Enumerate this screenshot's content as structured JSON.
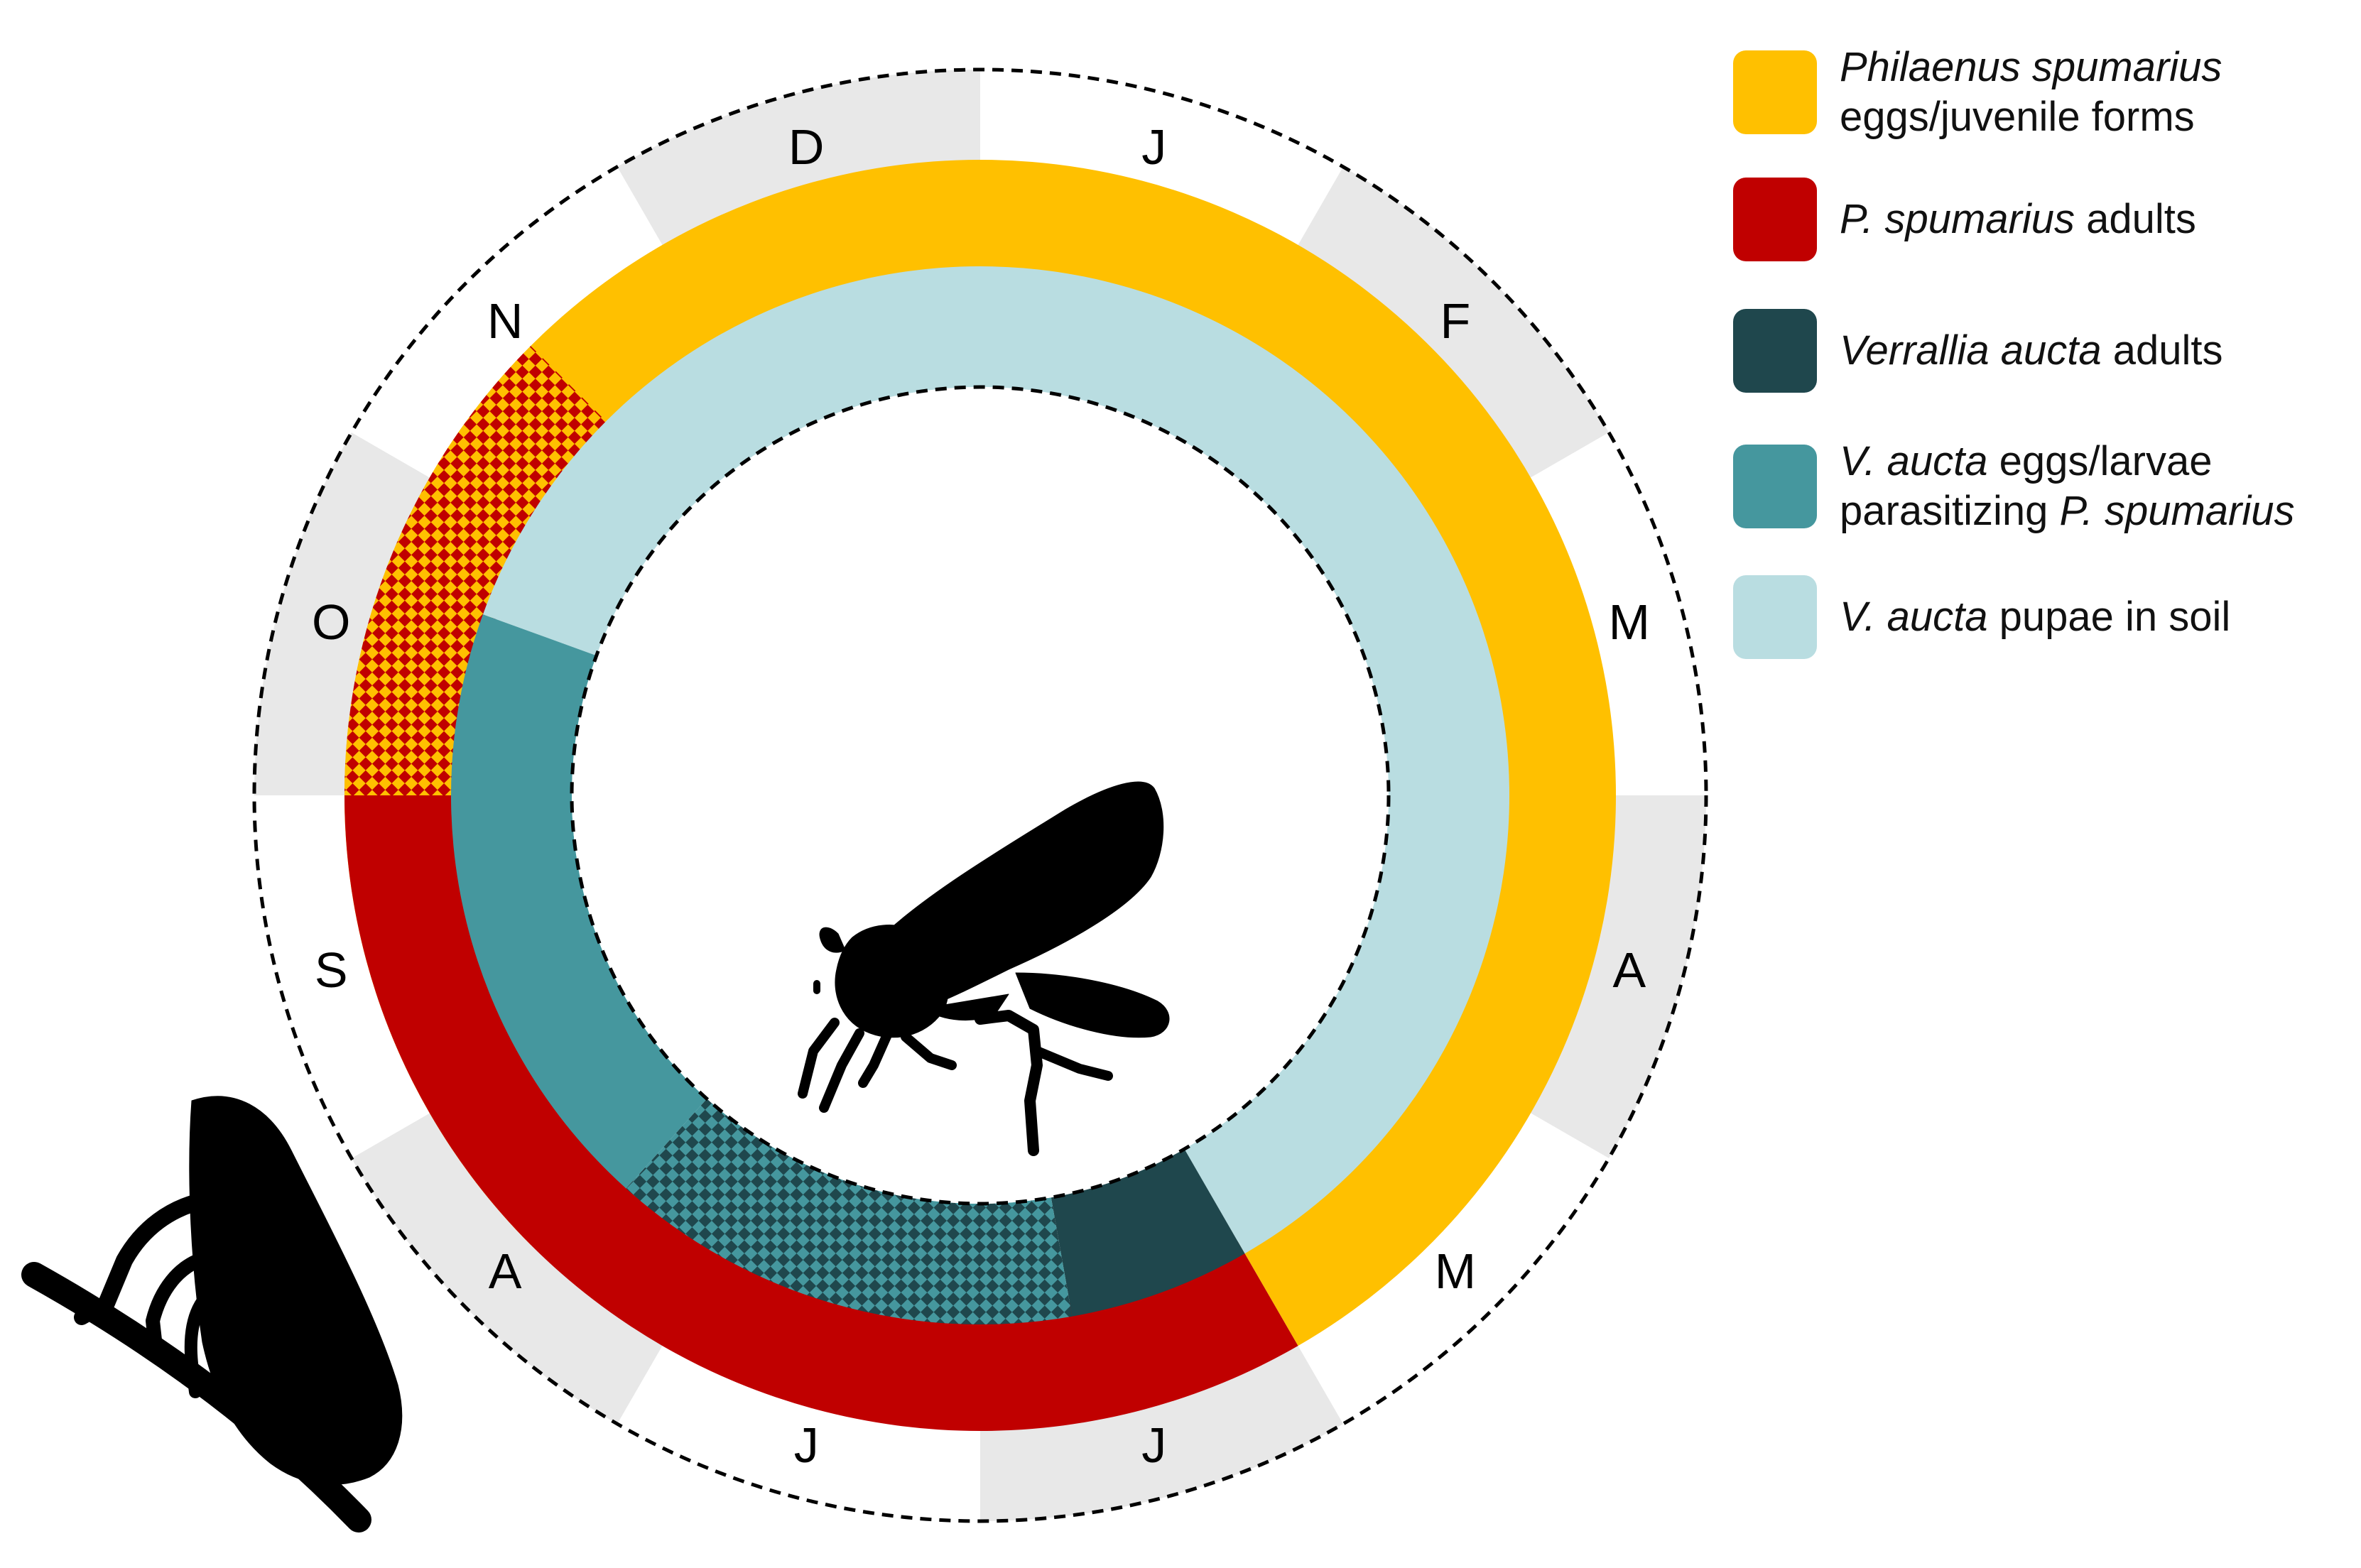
{
  "months": [
    "J",
    "F",
    "M",
    "A",
    "M",
    "J",
    "J",
    "A",
    "S",
    "O",
    "N",
    "D"
  ],
  "legend": [
    {
      "italic": "Philaenus spumarius",
      "text": "eggs/juvenile forms",
      "color": "#FFC000"
    },
    {
      "italic": "P. spumarius",
      "text": "adults",
      "color": "#C00000"
    },
    {
      "italic": "Verrallia aucta",
      "text": "adults",
      "color": "#1F474D"
    },
    {
      "italic_pre": "V. aucta",
      "text_mid": "eggs/larvae",
      "text_mid2": "parasitizing",
      "italic_post": "P. spumarius",
      "color": "#45979E"
    },
    {
      "italic": "V. aucta",
      "text": "pupae in soil",
      "color": "#B9DDE1"
    }
  ],
  "colors": {
    "month_band_alt": "#E8E8E8",
    "pattern_yellow_red": [
      "#FFC000",
      "#C00000"
    ],
    "pattern_teal_dark": [
      "#45979E",
      "#1F474D"
    ]
  },
  "silhouettes": [
    "fly-silhouette-icon",
    "spittlebug-silhouette-icon"
  ]
}
